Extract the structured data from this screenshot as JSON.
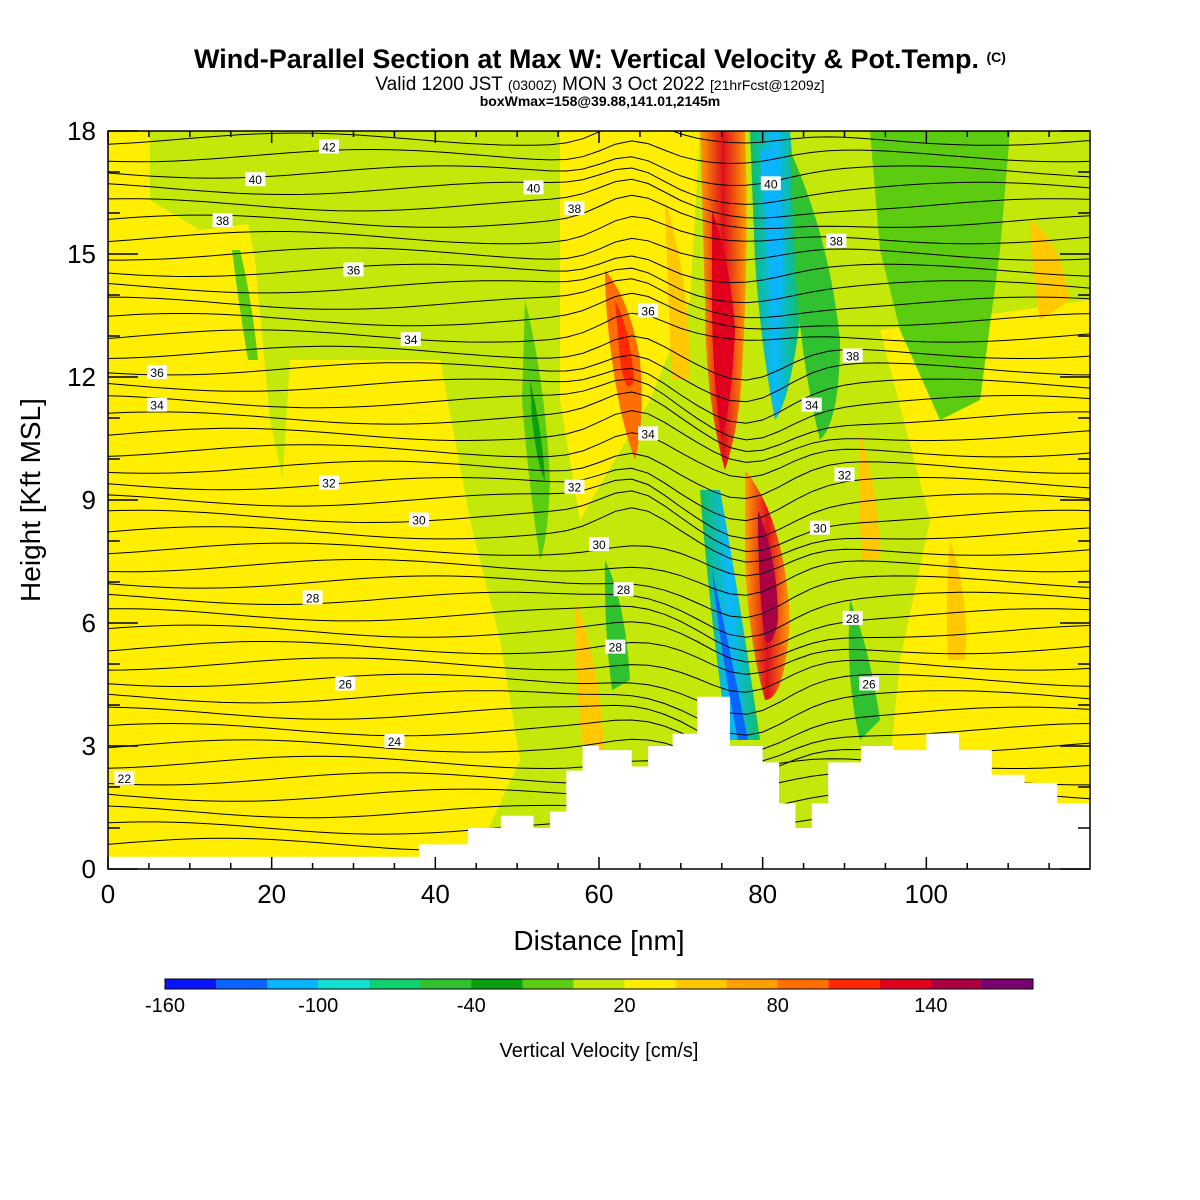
{
  "title": {
    "main": "Wind-Parallel Section at Max W: Vertical Velocity & Pot.Temp.",
    "main_suffix": "(C)",
    "valid_pre": "Valid 1200 JST",
    "valid_z": "(0300Z)",
    "valid_date": "MON 3 Oct 2022",
    "valid_fcst": "[21hrFcst@1209z]",
    "box": "boxWmax=158@39.88,141.01,2145m"
  },
  "chart_data": {
    "type": "heatmap",
    "xlabel": "Distance [nm]",
    "ylabel": "Height [Kft MSL]",
    "xlim": [
      0,
      120
    ],
    "ylim": [
      0,
      18
    ],
    "x_ticks": [
      "0",
      "20",
      "40",
      "60",
      "80",
      "100"
    ],
    "y_ticks": [
      "0",
      "3",
      "6",
      "9",
      "12",
      "15",
      "18"
    ],
    "colorbar": {
      "title": "Vertical Velocity [cm/s]",
      "tick_labels": [
        "-160",
        "-100",
        "-40",
        "20",
        "80",
        "140"
      ],
      "colors": [
        "#0a14ff",
        "#0a64ff",
        "#0ab4ff",
        "#12e0d0",
        "#10d070",
        "#30c030",
        "#0aa010",
        "#5ccc10",
        "#c4e80a",
        "#ffee00",
        "#ffc800",
        "#ffa000",
        "#ff6e00",
        "#ff2800",
        "#e0001e",
        "#aa0044",
        "#7a0070"
      ]
    },
    "terrain": [
      [
        0,
        0.3
      ],
      [
        38,
        0.3
      ],
      [
        38,
        0.6
      ],
      [
        44,
        0.6
      ],
      [
        44,
        1.0
      ],
      [
        48,
        1.0
      ],
      [
        48,
        1.3
      ],
      [
        52,
        1.3
      ],
      [
        52,
        1.0
      ],
      [
        54,
        1.0
      ],
      [
        54,
        1.4
      ],
      [
        56,
        1.4
      ],
      [
        56,
        2.4
      ],
      [
        58,
        2.4
      ],
      [
        58,
        3.0
      ],
      [
        60,
        3.0
      ],
      [
        60,
        2.9
      ],
      [
        64,
        2.9
      ],
      [
        64,
        2.5
      ],
      [
        66,
        2.5
      ],
      [
        66,
        3.0
      ],
      [
        69,
        3.0
      ],
      [
        69,
        3.3
      ],
      [
        72,
        3.3
      ],
      [
        72,
        4.2
      ],
      [
        76,
        4.2
      ],
      [
        76,
        3.0
      ],
      [
        80,
        3.0
      ],
      [
        80,
        2.6
      ],
      [
        82,
        2.6
      ],
      [
        82,
        1.6
      ],
      [
        84,
        1.6
      ],
      [
        84,
        1.0
      ],
      [
        86,
        1.0
      ],
      [
        86,
        1.6
      ],
      [
        88,
        1.6
      ],
      [
        88,
        2.6
      ],
      [
        92,
        2.6
      ],
      [
        92,
        3.0
      ],
      [
        96,
        3.0
      ],
      [
        96,
        2.9
      ],
      [
        100,
        2.9
      ],
      [
        100,
        3.3
      ],
      [
        104,
        3.3
      ],
      [
        104,
        2.9
      ],
      [
        108,
        2.9
      ],
      [
        108,
        2.3
      ],
      [
        112,
        2.3
      ],
      [
        112,
        2.1
      ],
      [
        116,
        2.1
      ],
      [
        116,
        1.6
      ],
      [
        120,
        1.6
      ]
    ],
    "contour_labels": [
      "42",
      "40",
      "40",
      "40",
      "38",
      "38",
      "38",
      "38",
      "36",
      "36",
      "36",
      "34",
      "34",
      "34",
      "34",
      "32",
      "32",
      "32",
      "30",
      "30",
      "30",
      "28",
      "28",
      "28",
      "28",
      "26",
      "26",
      "24",
      "22"
    ],
    "wmax": 158
  }
}
